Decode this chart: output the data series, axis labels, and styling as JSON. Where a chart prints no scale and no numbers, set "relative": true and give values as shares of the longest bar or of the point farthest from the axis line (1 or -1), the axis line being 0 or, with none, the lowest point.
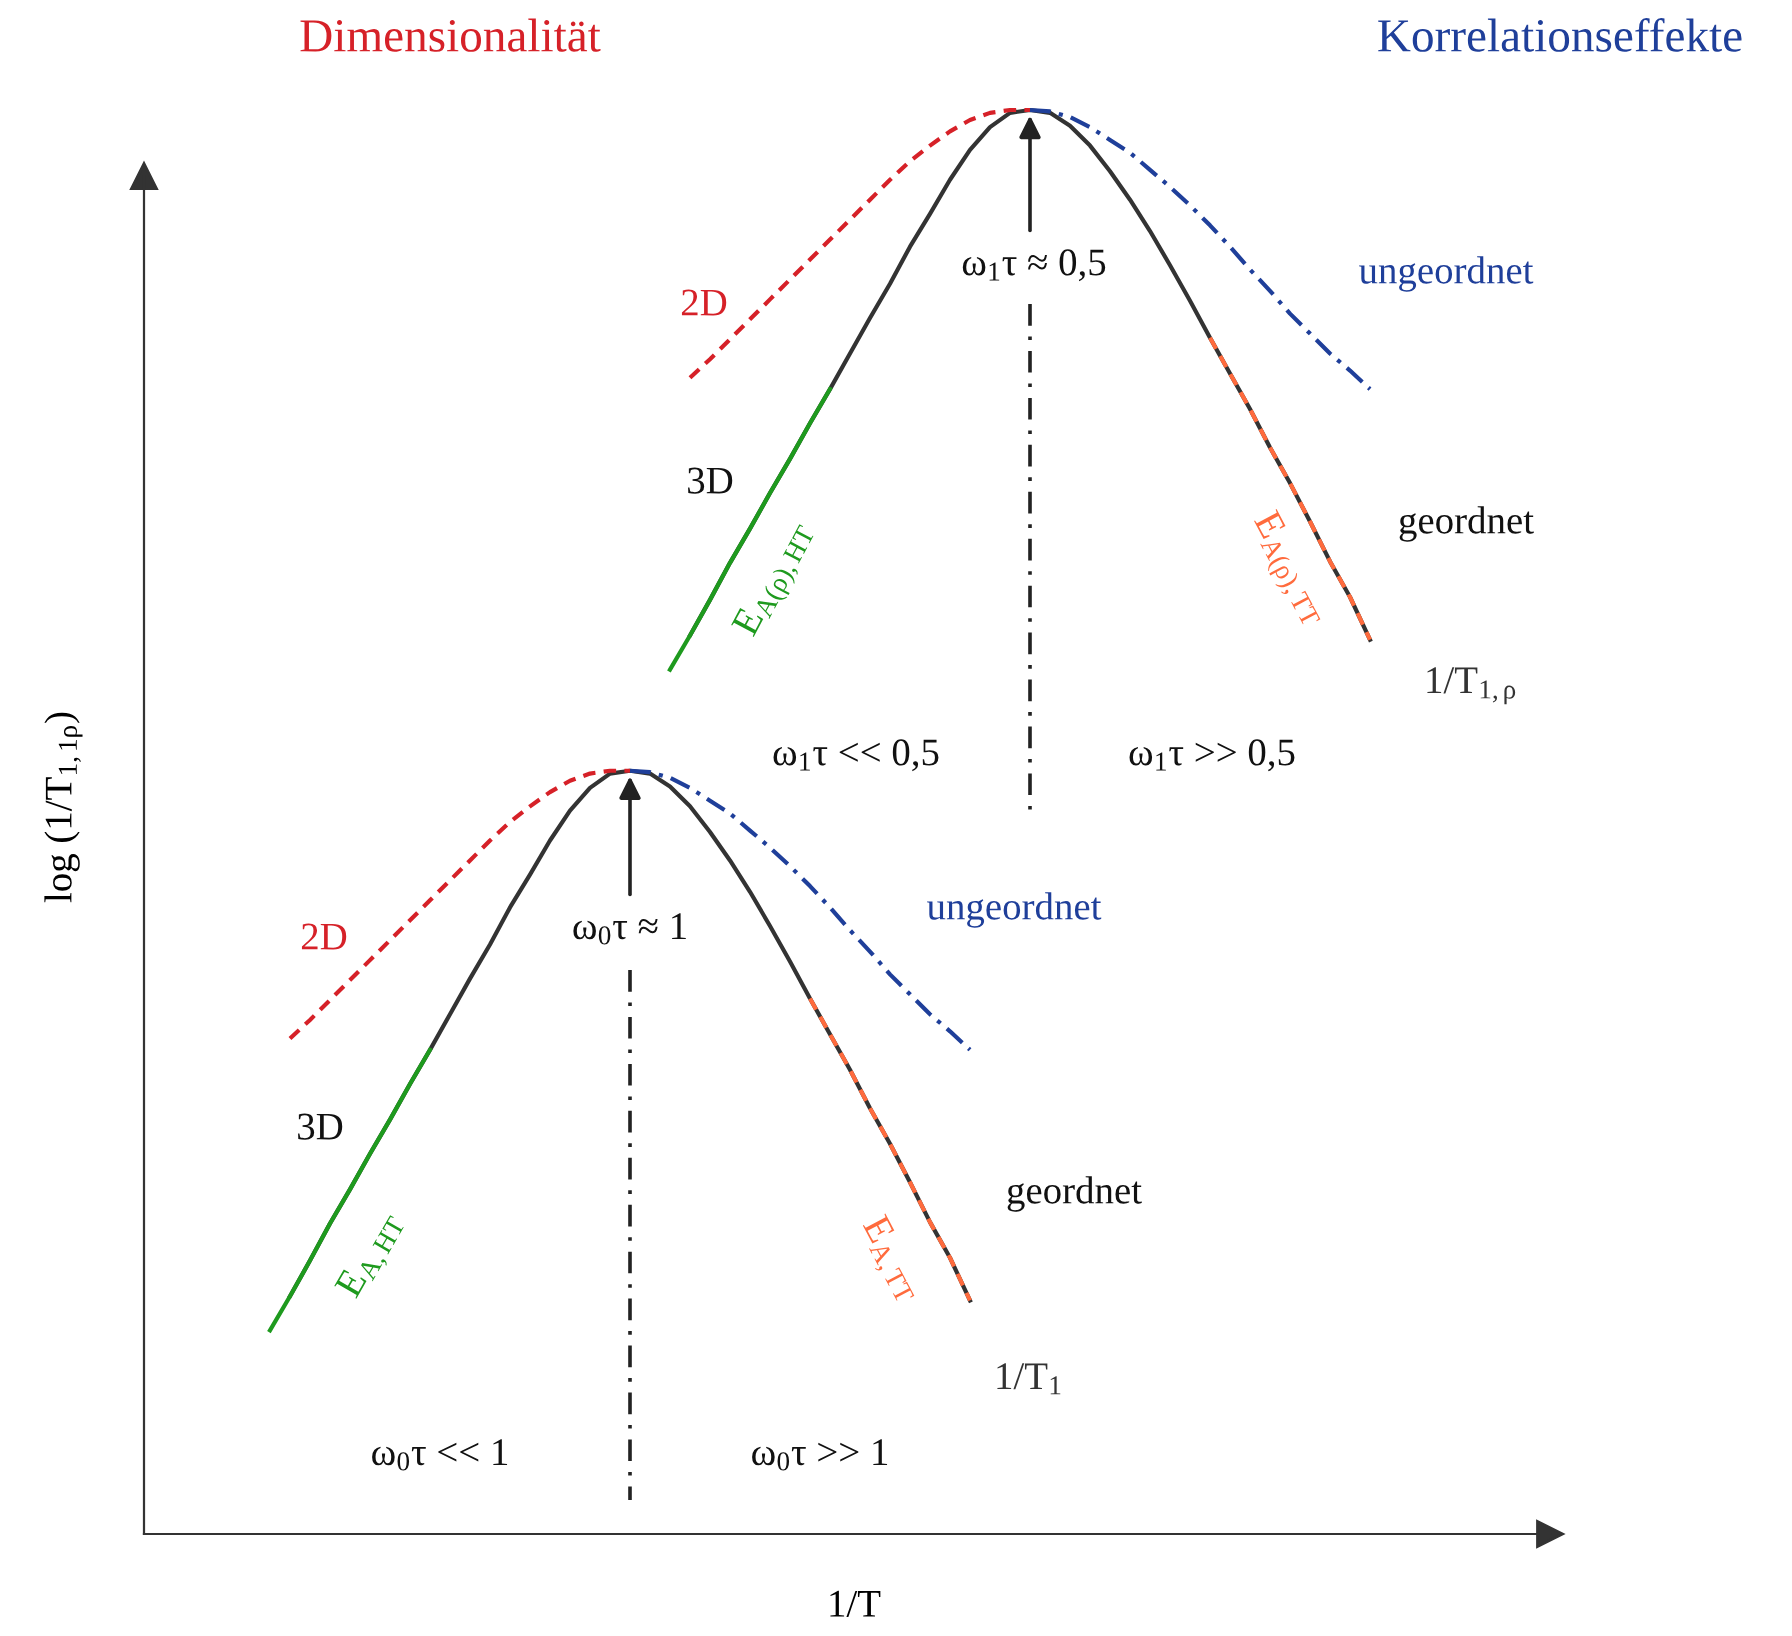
{
  "chart_data": {
    "type": "line",
    "relative": true,
    "xlabel": "1/T",
    "ylabel": "log (1/T$_{1,1ρ}$)",
    "legend": false,
    "marker": "none",
    "categories": [
      null,
      null,
      null,
      null,
      null,
      null,
      null,
      null,
      null,
      null,
      null,
      null,
      null,
      null,
      null,
      null,
      null,
      null,
      null,
      null,
      null,
      null,
      null,
      null,
      null,
      null,
      null,
      null,
      null,
      null,
      null,
      null,
      null,
      null,
      null,
      null,
      null,
      null,
      null,
      null,
      null,
      null,
      null,
      null,
      null,
      null,
      null,
      null,
      null,
      null,
      null,
      null,
      null,
      null,
      null,
      null,
      null,
      null,
      null,
      null,
      null,
      null,
      null,
      null,
      null,
      null,
      null,
      null,
      null,
      null,
      null
    ],
    "annotations": [
      "Dimensionalität",
      "Korrelationseffekte",
      "3D",
      "geordnet",
      "ω$_{0}$τ ≈ 1",
      "ω$_{0}$τ << 1",
      "ω$_{0}$τ >> 1",
      "3D",
      "geordnet",
      "ω$_{1}$τ ≈ 0,5",
      "ω$_{1}$τ << 0,5",
      "ω$_{1}$τ >> 0,5"
    ],
    "series": [
      {
        "name": "1/T$_{1}$",
        "color": "#333333",
        "line_style": "solid",
        "values": [
          null,
          null,
          null,
          null,
          null,
          null,
          null,
          0.167,
          0.192,
          0.218,
          0.242,
          0.267,
          0.291,
          0.316,
          0.34,
          0.365,
          0.39,
          0.414,
          0.44,
          0.463,
          0.487,
          0.508,
          0.524,
          0.534,
          0.536,
          0.534,
          0.525,
          0.511,
          0.493,
          0.473,
          0.451,
          0.427,
          0.402,
          0.376,
          0.351,
          0.326,
          0.299,
          0.274,
          0.247,
          0.219,
          0.194,
          0.164,
          null,
          null,
          null,
          null,
          null,
          null,
          null,
          null,
          null,
          null,
          null,
          null,
          null,
          null,
          null,
          null,
          null,
          null,
          null,
          null,
          null,
          null,
          null,
          null,
          null,
          null,
          null,
          null,
          null
        ]
      },
      {
        "name": "2D",
        "color": "#d62128",
        "line_style": "dashed",
        "values": [
          null,
          null,
          null,
          null,
          null,
          null,
          null,
          0.348,
          0.361,
          0.375,
          0.389,
          0.403,
          0.417,
          0.431,
          0.445,
          0.459,
          0.473,
          0.487,
          0.5,
          0.511,
          0.521,
          0.529,
          0.534,
          0.536,
          0.536,
          null,
          null,
          null,
          null,
          null,
          null,
          null,
          null,
          null,
          null,
          null,
          null,
          null,
          null,
          null,
          null,
          null,
          null,
          null,
          null,
          null,
          null,
          null,
          null,
          null,
          null,
          null,
          null,
          null,
          null,
          null,
          null,
          null,
          null,
          null,
          null,
          null,
          null,
          null,
          null,
          null,
          null,
          null,
          null,
          null,
          null
        ]
      },
      {
        "name": "ungeordnet",
        "color": "#1f3f9a",
        "line_style": "dashdot",
        "values": [
          null,
          null,
          null,
          null,
          null,
          null,
          null,
          null,
          null,
          null,
          null,
          null,
          null,
          null,
          null,
          null,
          null,
          null,
          null,
          null,
          null,
          null,
          null,
          null,
          0.536,
          0.535,
          0.531,
          0.524,
          0.515,
          0.506,
          0.494,
          0.482,
          0.469,
          0.455,
          0.44,
          0.424,
          0.409,
          0.393,
          0.379,
          0.365,
          0.353,
          0.34,
          null,
          null,
          null,
          null,
          null,
          null,
          null,
          null,
          null,
          null,
          null,
          null,
          null,
          null,
          null,
          null,
          null,
          null,
          null,
          null,
          null,
          null,
          null,
          null,
          null,
          null,
          null,
          null,
          null
        ]
      },
      {
        "name": "E$_{A,HT}$",
        "color": "#1e9a1e",
        "line_style": "solid",
        "values": [
          null,
          null,
          null,
          null,
          null,
          null,
          0.143,
          0.167,
          0.192,
          0.218,
          0.242,
          0.267,
          0.291,
          0.316,
          0.34,
          null,
          null,
          null,
          null,
          null,
          null,
          null,
          null,
          null,
          null,
          null,
          null,
          null,
          null,
          null,
          null,
          null,
          null,
          null,
          null,
          null,
          null,
          null,
          null,
          null,
          null,
          null,
          null,
          null,
          null,
          null,
          null,
          null,
          null,
          null,
          null,
          null,
          null,
          null,
          null,
          null,
          null,
          null,
          null,
          null,
          null,
          null,
          null,
          null,
          null,
          null,
          null,
          null,
          null,
          null,
          null
        ]
      },
      {
        "name": "E$_{A,TT}$",
        "color": "#ff6b3d",
        "line_style": "dashed",
        "values": [
          null,
          null,
          null,
          null,
          null,
          null,
          null,
          null,
          null,
          null,
          null,
          null,
          null,
          null,
          null,
          null,
          null,
          null,
          null,
          null,
          null,
          null,
          null,
          null,
          null,
          null,
          null,
          null,
          null,
          null,
          null,
          null,
          null,
          0.376,
          0.351,
          0.326,
          0.299,
          0.274,
          0.247,
          0.219,
          0.194,
          0.164,
          null,
          null,
          null,
          null,
          null,
          null,
          null,
          null,
          null,
          null,
          null,
          null,
          null,
          null,
          null,
          null,
          null,
          null,
          null,
          null,
          null,
          null,
          null,
          null,
          null,
          null,
          null,
          null,
          null
        ]
      },
      {
        "name": "1/T$_{1,ρ}$",
        "color": "#333333",
        "line_style": "solid",
        "values": [
          null,
          null,
          null,
          null,
          null,
          null,
          null,
          null,
          null,
          null,
          null,
          null,
          null,
          null,
          null,
          null,
          null,
          null,
          null,
          null,
          null,
          null,
          null,
          null,
          null,
          null,
          null,
          0.631,
          0.656,
          0.682,
          0.706,
          0.731,
          0.755,
          0.78,
          0.804,
          0.829,
          0.854,
          0.878,
          0.904,
          0.927,
          0.951,
          0.972,
          0.988,
          0.998,
          1.0,
          0.998,
          0.989,
          0.975,
          0.957,
          0.937,
          0.915,
          0.891,
          0.866,
          0.84,
          0.815,
          0.79,
          0.763,
          0.738,
          0.711,
          0.683,
          0.658,
          0.628,
          null,
          null,
          null,
          null,
          null,
          null,
          null,
          null,
          null
        ]
      },
      {
        "name": "2D",
        "color": "#d62128",
        "line_style": "dashed",
        "values": [
          null,
          null,
          null,
          null,
          null,
          null,
          null,
          null,
          null,
          null,
          null,
          null,
          null,
          null,
          null,
          null,
          null,
          null,
          null,
          null,
          null,
          null,
          null,
          null,
          null,
          null,
          null,
          0.812,
          0.825,
          0.839,
          0.853,
          0.867,
          0.881,
          0.895,
          0.909,
          0.923,
          0.937,
          0.951,
          0.964,
          0.975,
          0.985,
          0.993,
          0.998,
          1.0,
          1.0,
          null,
          null,
          null,
          null,
          null,
          null,
          null,
          null,
          null,
          null,
          null,
          null,
          null,
          null,
          null,
          null,
          null,
          null,
          null,
          null,
          null,
          null,
          null,
          null,
          null,
          null
        ]
      },
      {
        "name": "ungeordnet",
        "color": "#1f3f9a",
        "line_style": "dashdot",
        "values": [
          null,
          null,
          null,
          null,
          null,
          null,
          null,
          null,
          null,
          null,
          null,
          null,
          null,
          null,
          null,
          null,
          null,
          null,
          null,
          null,
          null,
          null,
          null,
          null,
          null,
          null,
          null,
          null,
          null,
          null,
          null,
          null,
          null,
          null,
          null,
          null,
          null,
          null,
          null,
          null,
          null,
          null,
          null,
          null,
          1.0,
          0.999,
          0.995,
          0.988,
          0.979,
          0.97,
          0.958,
          0.946,
          0.933,
          0.919,
          0.904,
          0.888,
          0.873,
          0.857,
          0.843,
          0.829,
          0.817,
          0.804,
          null,
          null,
          null,
          null,
          null,
          null,
          null,
          null,
          null
        ]
      },
      {
        "name": "E$_{A(ρ),HT}$",
        "color": "#1e9a1e",
        "line_style": "solid",
        "values": [
          null,
          null,
          null,
          null,
          null,
          null,
          null,
          null,
          null,
          null,
          null,
          null,
          null,
          null,
          null,
          null,
          null,
          null,
          null,
          null,
          null,
          null,
          null,
          null,
          null,
          null,
          0.607,
          0.631,
          0.656,
          0.682,
          0.706,
          0.731,
          0.755,
          0.78,
          0.804,
          null,
          null,
          null,
          null,
          null,
          null,
          null,
          null,
          null,
          null,
          null,
          null,
          null,
          null,
          null,
          null,
          null,
          null,
          null,
          null,
          null,
          null,
          null,
          null,
          null,
          null,
          null,
          null,
          null,
          null,
          null,
          null,
          null,
          null,
          null,
          null
        ]
      },
      {
        "name": "E$_{A(ρ),TT}$",
        "color": "#ff6b3d",
        "line_style": "dashed",
        "values": [
          null,
          null,
          null,
          null,
          null,
          null,
          null,
          null,
          null,
          null,
          null,
          null,
          null,
          null,
          null,
          null,
          null,
          null,
          null,
          null,
          null,
          null,
          null,
          null,
          null,
          null,
          null,
          null,
          null,
          null,
          null,
          null,
          null,
          null,
          null,
          null,
          null,
          null,
          null,
          null,
          null,
          null,
          null,
          null,
          null,
          null,
          null,
          null,
          null,
          null,
          null,
          null,
          null,
          0.84,
          0.815,
          0.79,
          0.763,
          0.738,
          0.711,
          0.683,
          0.658,
          0.628,
          null,
          null,
          null,
          null,
          null,
          null,
          null,
          null,
          null
        ]
      }
    ]
  }
}
